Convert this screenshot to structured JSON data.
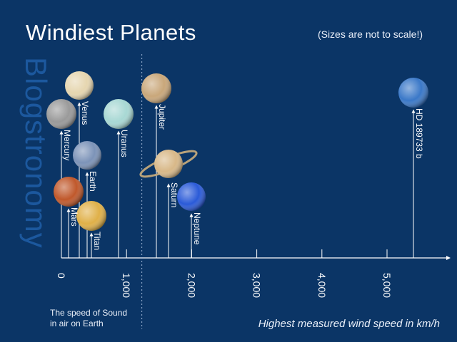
{
  "header": {
    "title": "Windiest Planets",
    "note": "(Sizes are not to scale!)",
    "watermark": "Blogstronomy"
  },
  "annotation": {
    "sound_line1": "The speed of Sound",
    "sound_line2": "in air on Earth"
  },
  "chart_data": {
    "type": "scatter",
    "title": "Windiest Planets",
    "xlabel": "Highest measured wind speed in km/h",
    "ylabel": "",
    "xlim": [
      0,
      6000
    ],
    "x_ticks": [
      0,
      1000,
      2000,
      3000,
      4000,
      5000
    ],
    "x_tick_labels": [
      "0",
      "1,000",
      "2,000",
      "3,000",
      "4,000",
      "5,000"
    ],
    "grid": false,
    "reference_line": {
      "x": 1235,
      "label": "The speed of Sound in air on Earth"
    },
    "series": [
      {
        "name": "Mercury",
        "x": 120,
        "color": "#9a9a9a"
      },
      {
        "name": "Venus",
        "x": 360,
        "color": "#e6d6b0"
      },
      {
        "name": "Earth",
        "x": 410,
        "color": "#7c93b8"
      },
      {
        "name": "Mars",
        "x": 150,
        "color": "#c0582b"
      },
      {
        "name": "Titan",
        "x": 470,
        "color": "#e0b048"
      },
      {
        "name": "Uranus",
        "x": 900,
        "color": "#a8d8d4"
      },
      {
        "name": "Jupiter",
        "x": 1450,
        "color": "#c9a77a"
      },
      {
        "name": "Saturn",
        "x": 1650,
        "color": "#d8b888"
      },
      {
        "name": "Neptune",
        "x": 2000,
        "color": "#2a5ad8"
      },
      {
        "name": "HD 189733 b",
        "x": 5400,
        "color": "#3a78c8"
      }
    ]
  }
}
